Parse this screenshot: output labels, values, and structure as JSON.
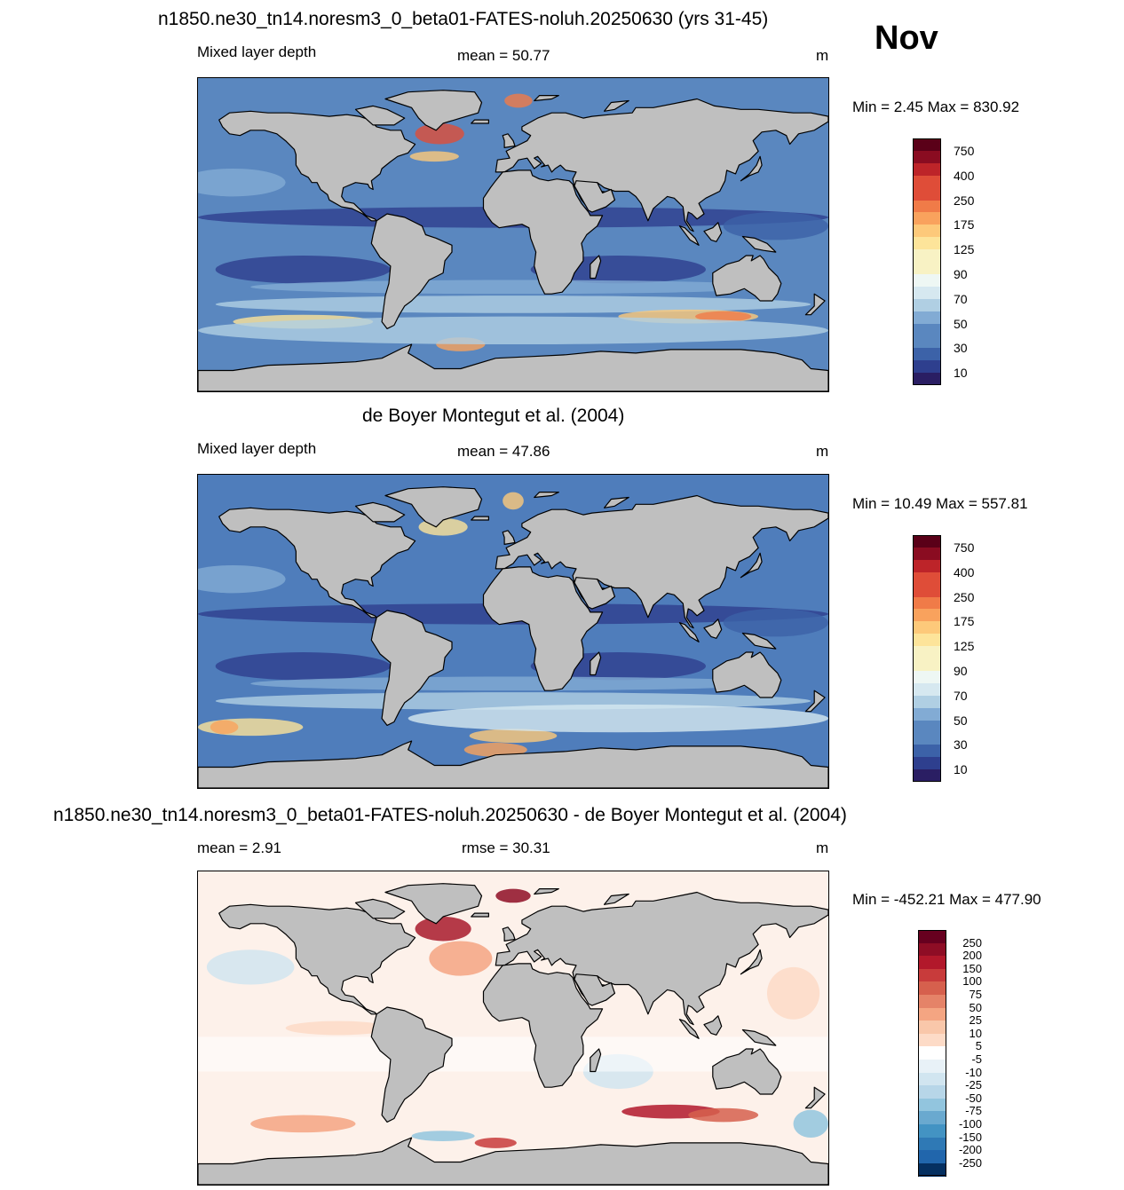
{
  "header": {
    "title_model": "n1850.ne30_tn14.noresm3_0_beta01-FATES-noluh.20250630 (yrs 31-45)",
    "month": "Nov",
    "title_obs": "de Boyer Montegut et al. (2004)",
    "title_diff": "n1850.ne30_tn14.noresm3_0_beta01-FATES-noluh.20250630 - de Boyer Montegut et al. (2004)"
  },
  "chart_data": [
    {
      "type": "heatmap",
      "title": "n1850.ne30_tn14.noresm3_0_beta01-FATES-noluh.20250630 (yrs 31-45)",
      "variable": "Mixed layer depth",
      "units": "m",
      "stat_label": "mean =  50.77",
      "minmax_label": "Min =   2.45 Max = 830.92",
      "mean": 50.77,
      "min": 2.45,
      "max": 830.92,
      "colorbar_levels": [
        "10",
        "30",
        "50",
        "70",
        "90",
        "125",
        "175",
        "250",
        "400",
        "750"
      ],
      "colors": [
        "#2a1e63",
        "#2e3f8e",
        "#3c62a8",
        "#5a87bf",
        "#82abd4",
        "#b0cfe3",
        "#d6e8f0",
        "#eef7f4",
        "#f8f2c4",
        "#fde49a",
        "#fdc97a",
        "#f9a25d",
        "#f07b48",
        "#df4d38",
        "#bd2429",
        "#8a0c21",
        "#5a0018"
      ]
    },
    {
      "type": "heatmap",
      "title": "de Boyer Montegut et al. (2004)",
      "variable": "Mixed layer depth",
      "units": "m",
      "stat_label": "mean =  47.86",
      "minmax_label": "Min =  10.49 Max = 557.81",
      "mean": 47.86,
      "min": 10.49,
      "max": 557.81,
      "colorbar_levels": [
        "10",
        "30",
        "50",
        "70",
        "90",
        "125",
        "175",
        "250",
        "400",
        "750"
      ],
      "colors": [
        "#2a1e63",
        "#2e3f8e",
        "#3c62a8",
        "#5a87bf",
        "#82abd4",
        "#b0cfe3",
        "#d6e8f0",
        "#eef7f4",
        "#f8f2c4",
        "#fde49a",
        "#fdc97a",
        "#f9a25d",
        "#f07b48",
        "#df4d38",
        "#bd2429",
        "#8a0c21",
        "#5a0018"
      ]
    },
    {
      "type": "heatmap",
      "title": "n1850.ne30_tn14.noresm3_0_beta01-FATES-noluh.20250630 - de Boyer Montegut et al. (2004)",
      "units": "m",
      "stat_label": "mean =   2.91",
      "rmse_label": "rmse =  30.31",
      "mean": 2.91,
      "rmse": 30.31,
      "min": -452.21,
      "max": 477.9,
      "minmax_label": "Min = -452.21 Max = 477.90",
      "colorbar_levels": [
        "250",
        "200",
        "150",
        "100",
        "75",
        "50",
        "25",
        "10",
        "5",
        "-5",
        "-10",
        "-25",
        "-50",
        "-75",
        "-100",
        "-150",
        "-200",
        "-250"
      ],
      "colors": [
        "#67001f",
        "#8e0d25",
        "#b2182b",
        "#c83b3b",
        "#d6604d",
        "#e58368",
        "#f4a582",
        "#f9c7aa",
        "#fddbc7",
        "#fdefe5",
        "#ffffff",
        "#e8f1f7",
        "#d1e5f0",
        "#b7d6e8",
        "#92c5de",
        "#6aa9cf",
        "#4393c3",
        "#2f79b5",
        "#2166ac",
        "#053061"
      ]
    }
  ]
}
